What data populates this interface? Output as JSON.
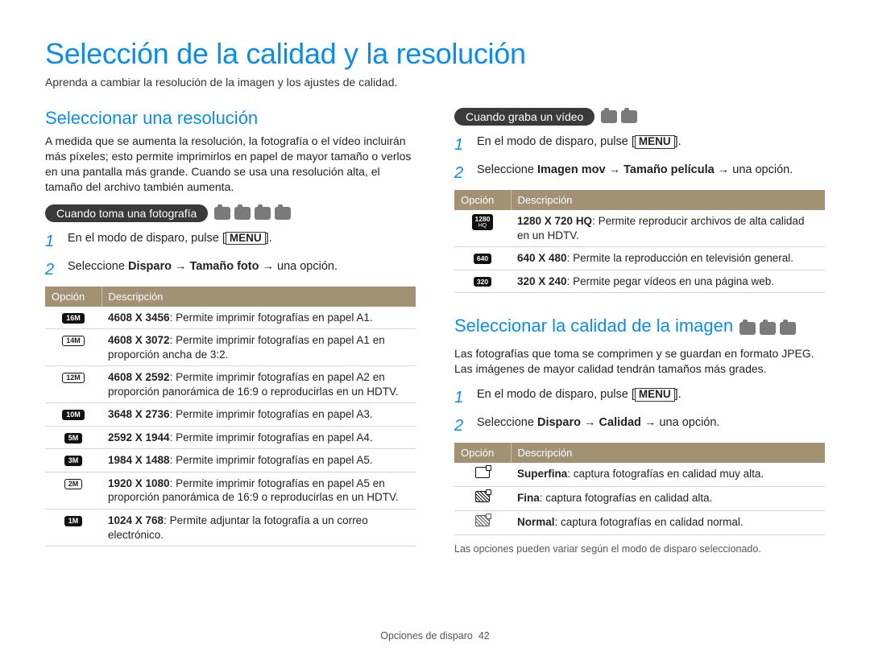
{
  "colors": {
    "accent": "#0a8de6",
    "pill_bg": "#3a3a3a",
    "table_header_bg": "#a39173",
    "icon_gray": "#7a7a7a",
    "border_gray": "#d8d8d8"
  },
  "title": "Selección de la calidad y la resolución",
  "subtitle": "Aprenda a cambiar la resolución de la imagen y los ajustes de calidad.",
  "left": {
    "heading": "Seleccionar una resolución",
    "intro": "A medida que se aumenta la resolución, la fotografía o el vídeo incluirán más píxeles; esto permite imprimirlos en papel de mayor tamaño o verlos en una pantalla más grande. Cuando se usa una resolución alta, el tamaño del archivo también aumenta.",
    "pill": "Cuando toma una fotografía",
    "mode_icons": [
      "smart-icon",
      "program-icon",
      "scene-icon",
      "dual-icon"
    ],
    "steps": {
      "s1_pre": "En el modo de disparo, pulse [",
      "s1_btn": "MENU",
      "s1_post": "].",
      "s2_pre": "Seleccione ",
      "s2_b1": "Disparo",
      "s2_arrow1": " → ",
      "s2_b2": "Tamaño foto",
      "s2_arrow2": " → ",
      "s2_post": "una opción."
    },
    "table": {
      "h1": "Opción",
      "h2": "Descripción",
      "rows": [
        {
          "icon": "16M",
          "icon_style": "dark",
          "b": "4608 X 3456",
          "t": ": Permite imprimir fotografías en papel A1."
        },
        {
          "icon": "14M",
          "icon_style": "outline",
          "b": "4608 X 3072",
          "t": ": Permite imprimir fotografías en papel A1 en proporción ancha de 3:2."
        },
        {
          "icon": "12M",
          "icon_style": "outline",
          "b": "4608 X 2592",
          "t": ": Permite imprimir fotografías en papel A2 en proporción panorámica de 16:9 o reproducirlas en un HDTV."
        },
        {
          "icon": "10M",
          "icon_style": "dark",
          "b": "3648 X 2736",
          "t": ": Permite imprimir fotografías en papel A3."
        },
        {
          "icon": "5M",
          "icon_style": "dark",
          "b": "2592 X 1944",
          "t": ": Permite imprimir fotografías en papel A4."
        },
        {
          "icon": "3M",
          "icon_style": "dark",
          "b": "1984 X 1488",
          "t": ": Permite imprimir fotografías en papel A5."
        },
        {
          "icon": "2M",
          "icon_style": "outline",
          "b": "1920 X 1080",
          "t": ": Permite imprimir fotografías en papel A5 en proporción panorámica de 16:9 o reproducirlas en un HDTV."
        },
        {
          "icon": "1M",
          "icon_style": "dark",
          "b": "1024 X 768",
          "t": ": Permite adjuntar la fotografía a un correo electrónico."
        }
      ]
    }
  },
  "right_top": {
    "pill": "Cuando graba un vídeo",
    "mode_icons": [
      "video-icon",
      "smart-video-icon"
    ],
    "steps": {
      "s1_pre": "En el modo de disparo, pulse [",
      "s1_btn": "MENU",
      "s1_post": "].",
      "s2_pre": "Seleccione ",
      "s2_b1": "Imagen mov",
      "s2_arrow1": " → ",
      "s2_b2": "Tamaño película",
      "s2_arrow2": " → ",
      "s2_post": "una opción."
    },
    "table": {
      "h1": "Opción",
      "h2": "Descripción",
      "rows": [
        {
          "icon_top": "1280",
          "icon_bot": "HQ",
          "b": "1280 X 720 HQ",
          "t": ": Permite reproducir archivos de alta calidad en un HDTV."
        },
        {
          "icon_top": "640",
          "icon_bot": "",
          "b": "640 X 480",
          "t": ": Permite la reproducción en televisión general."
        },
        {
          "icon_top": "320",
          "icon_bot": "",
          "b": "320 X 240",
          "t": ": Permite pegar vídeos en una página web."
        }
      ]
    }
  },
  "right_bot": {
    "heading": "Seleccionar la calidad de la imagen",
    "mode_icons": [
      "program-icon",
      "scene-icon",
      "dual-icon"
    ],
    "intro": "Las fotografías que toma se comprimen y se guardan en formato JPEG. Las imágenes de mayor calidad tendrán tamaños más grades.",
    "steps": {
      "s1_pre": "En el modo de disparo, pulse [",
      "s1_btn": "MENU",
      "s1_post": "].",
      "s2_pre": "Seleccione ",
      "s2_b1": "Disparo",
      "s2_arrow1": " → ",
      "s2_b2": "Calidad",
      "s2_arrow2": " → ",
      "s2_post": "una opción."
    },
    "table": {
      "h1": "Opción",
      "h2": "Descripción",
      "rows": [
        {
          "b": "Superfina",
          "t": ": captura fotografías en calidad muy alta."
        },
        {
          "b": "Fina",
          "t": ": captura fotografías en calidad alta."
        },
        {
          "b": "Normal",
          "t": ": captura fotografías en calidad normal."
        }
      ]
    },
    "footnote": "Las opciones pueden variar según el modo de disparo seleccionado."
  },
  "footer": {
    "section": "Opciones de disparo",
    "page": "42"
  }
}
